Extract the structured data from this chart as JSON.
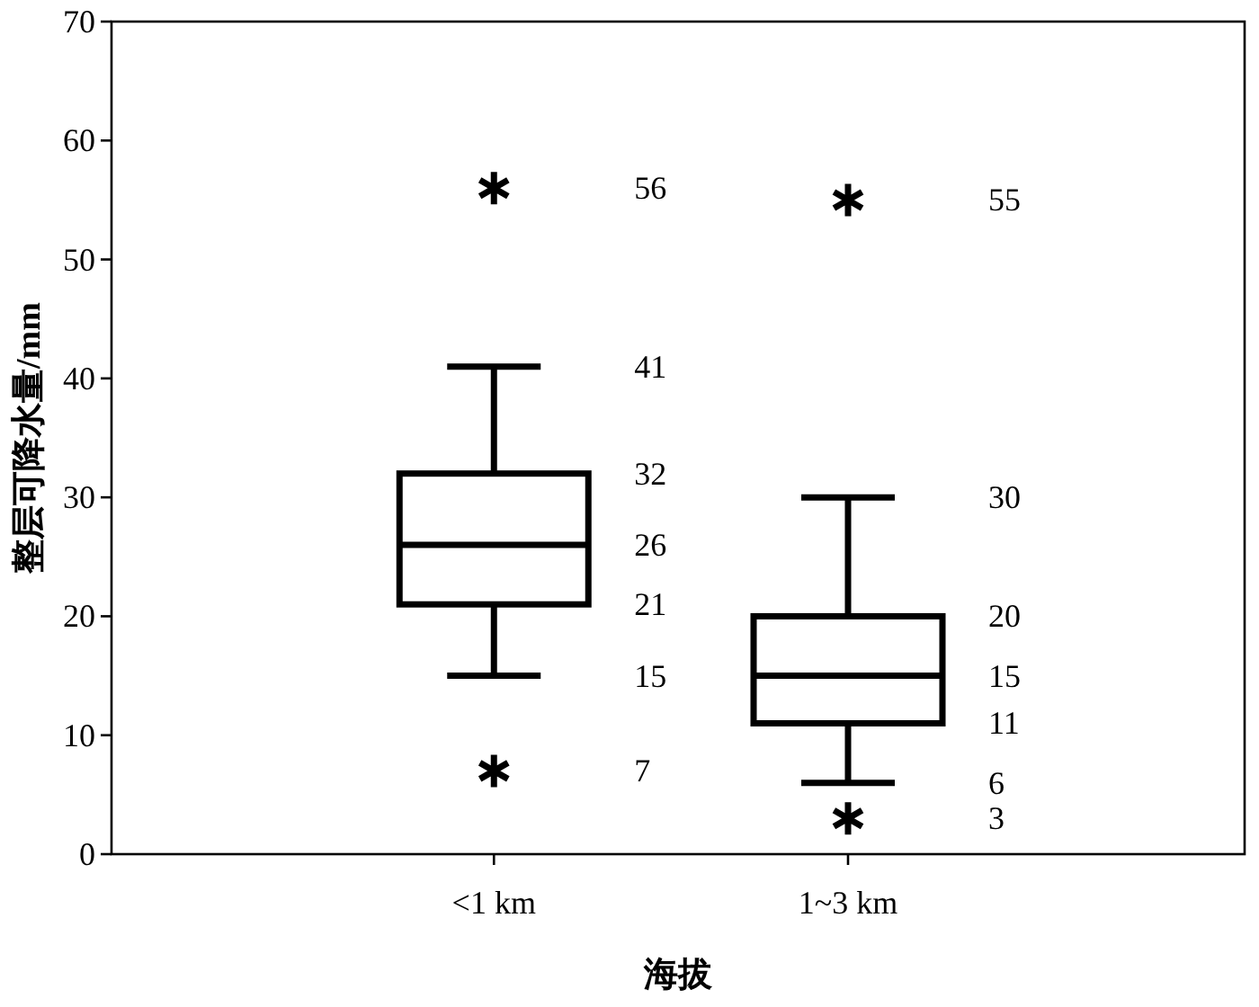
{
  "chart_data": {
    "type": "box",
    "ylabel": "整层可降水量/mm",
    "xlabel": "海拔",
    "categories": [
      "<1 km",
      "1~3 km"
    ],
    "boxes": [
      {
        "low": 15,
        "q1": 21,
        "median": 26,
        "q3": 32,
        "high": 41,
        "outliers": [
          56,
          7
        ]
      },
      {
        "low": 6,
        "q1": 11,
        "median": 15,
        "q3": 20,
        "high": 30,
        "outliers": [
          55,
          3
        ]
      }
    ],
    "ylim": [
      0,
      70
    ],
    "yticks": [
      0,
      10,
      20,
      30,
      40,
      50,
      60,
      70
    ],
    "grid": false,
    "annotations": [
      "56",
      "41",
      "32",
      "26",
      "21",
      "15",
      "7",
      "55",
      "30",
      "20",
      "15",
      "11",
      "6",
      "3"
    ]
  }
}
